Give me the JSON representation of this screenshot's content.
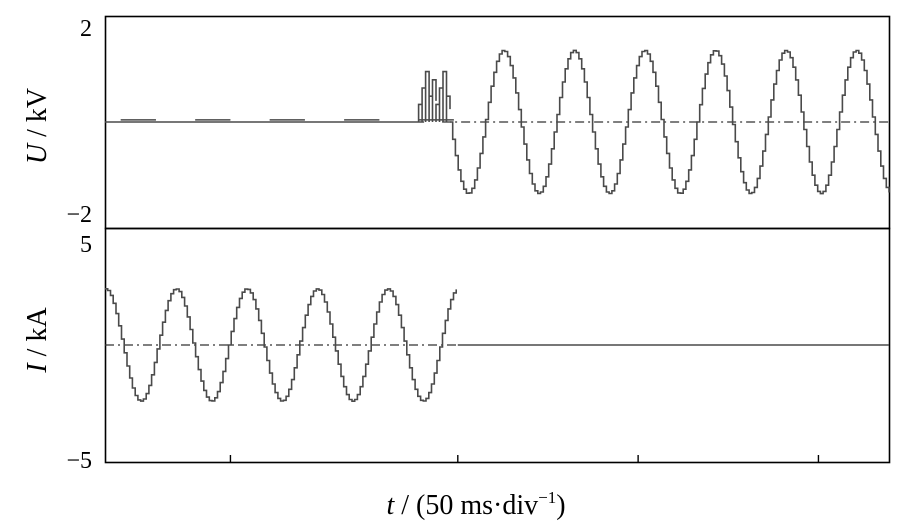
{
  "chart_data": [
    {
      "type": "line",
      "panel": "top",
      "ylabel_var": "U",
      "ylabel_unit": " / kV",
      "ylim": [
        -2,
        2
      ],
      "yticks": [
        {
          "value": 2,
          "label": "2"
        },
        {
          "value": -2,
          "label": "−2"
        }
      ],
      "series": [
        {
          "style": "solid-stepped",
          "segments": [
            {
              "kind": "flat",
              "t": [
                0,
                4.07
              ],
              "y": 0
            },
            {
              "kind": "blips",
              "t": [
                0.2,
                4.05
              ],
              "amplitude": 0.04
            },
            {
              "kind": "bursts",
              "t": [
                4.0,
                4.4
              ],
              "peak": 0.95
            },
            {
              "kind": "sine",
              "t": [
                4.4,
                10
              ],
              "amplitude": 1.35,
              "period": 0.9,
              "start_phase": "negative"
            }
          ]
        }
      ],
      "zero_reference": {
        "style": "dash-dot",
        "y": 0,
        "t": [
          4.3,
          10
        ]
      }
    },
    {
      "type": "line",
      "panel": "bottom",
      "ylabel_var": "I",
      "ylabel_unit": " / kA",
      "ylim": [
        -5,
        5
      ],
      "yticks": [
        {
          "value": 5,
          "label": "5"
        },
        {
          "value": -5,
          "label": "−5"
        }
      ],
      "series": [
        {
          "style": "solid-stepped",
          "segments": [
            {
              "kind": "sine",
              "t": [
                0,
                4.5
              ],
              "amplitude": 2.4,
              "period": 0.9,
              "start_phase": "positive-peak"
            },
            {
              "kind": "flat",
              "t": [
                4.5,
                10
              ],
              "y": 0
            }
          ]
        }
      ],
      "zero_reference": {
        "style": "dash-dot",
        "y": 0,
        "t": [
          0,
          4.5
        ]
      }
    }
  ],
  "xaxis": {
    "label_var": "t",
    "label_unit": " / (50 ms·div",
    "label_sup": "−1",
    "label_close": ")",
    "xlim": [
      0,
      10
    ],
    "minor_ticks_at": [
      1.6,
      4.5,
      6.8,
      9.1
    ]
  }
}
